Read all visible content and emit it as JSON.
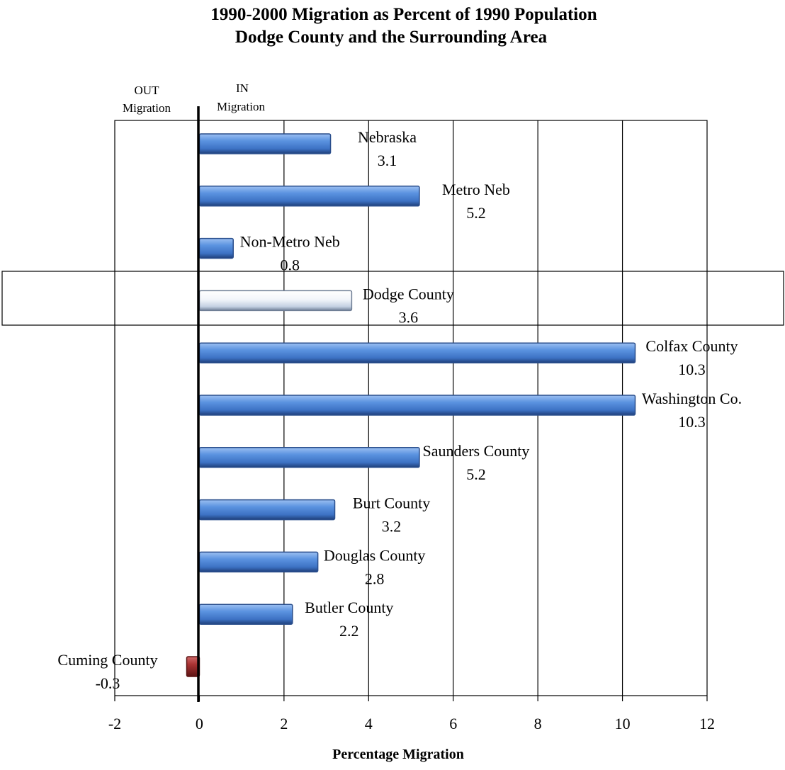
{
  "chart_data": {
    "type": "bar",
    "orientation": "horizontal",
    "title": "1990-2000 Migration as Percent of 1990 Population",
    "subtitle": "Dodge County and the Surrounding Area",
    "xlabel": "Percentage Migration",
    "ylabel": "",
    "xlim": [
      -2,
      12
    ],
    "xticks": [
      "-2",
      "0",
      "2",
      "4",
      "6",
      "8",
      "10",
      "12"
    ],
    "grid": true,
    "direction_labels": {
      "out_top": "OUT",
      "out_bottom": "Migration",
      "in_top": "IN",
      "in_bottom": "Migration"
    },
    "categories": [
      {
        "name": "Nebraska",
        "value": 3.1,
        "label": "3.1",
        "style": "blue"
      },
      {
        "name": "Metro Neb",
        "value": 5.2,
        "label": "5.2",
        "style": "blue"
      },
      {
        "name": "Non-Metro Neb",
        "value": 0.8,
        "label": "0.8",
        "style": "blue"
      },
      {
        "name": "Dodge County",
        "value": 3.6,
        "label": "3.6",
        "style": "white",
        "highlighted": true
      },
      {
        "name": "Colfax County",
        "value": 10.3,
        "label": "10.3",
        "style": "blue"
      },
      {
        "name": "Washington Co.",
        "value": 10.3,
        "label": "10.3",
        "style": "blue"
      },
      {
        "name": "Saunders County",
        "value": 5.2,
        "label": "5.2",
        "style": "blue"
      },
      {
        "name": "Burt County",
        "value": 3.2,
        "label": "3.2",
        "style": "blue"
      },
      {
        "name": "Douglas County",
        "value": 2.8,
        "label": "2.8",
        "style": "blue"
      },
      {
        "name": "Butler County",
        "value": 2.2,
        "label": "2.2",
        "style": "blue"
      },
      {
        "name": "Cuming County",
        "value": -0.3,
        "label": "-0.3",
        "style": "red"
      }
    ],
    "colors": {
      "blue": "#4f86d3",
      "red": "#a33030",
      "white": "#dfe7f2"
    }
  }
}
